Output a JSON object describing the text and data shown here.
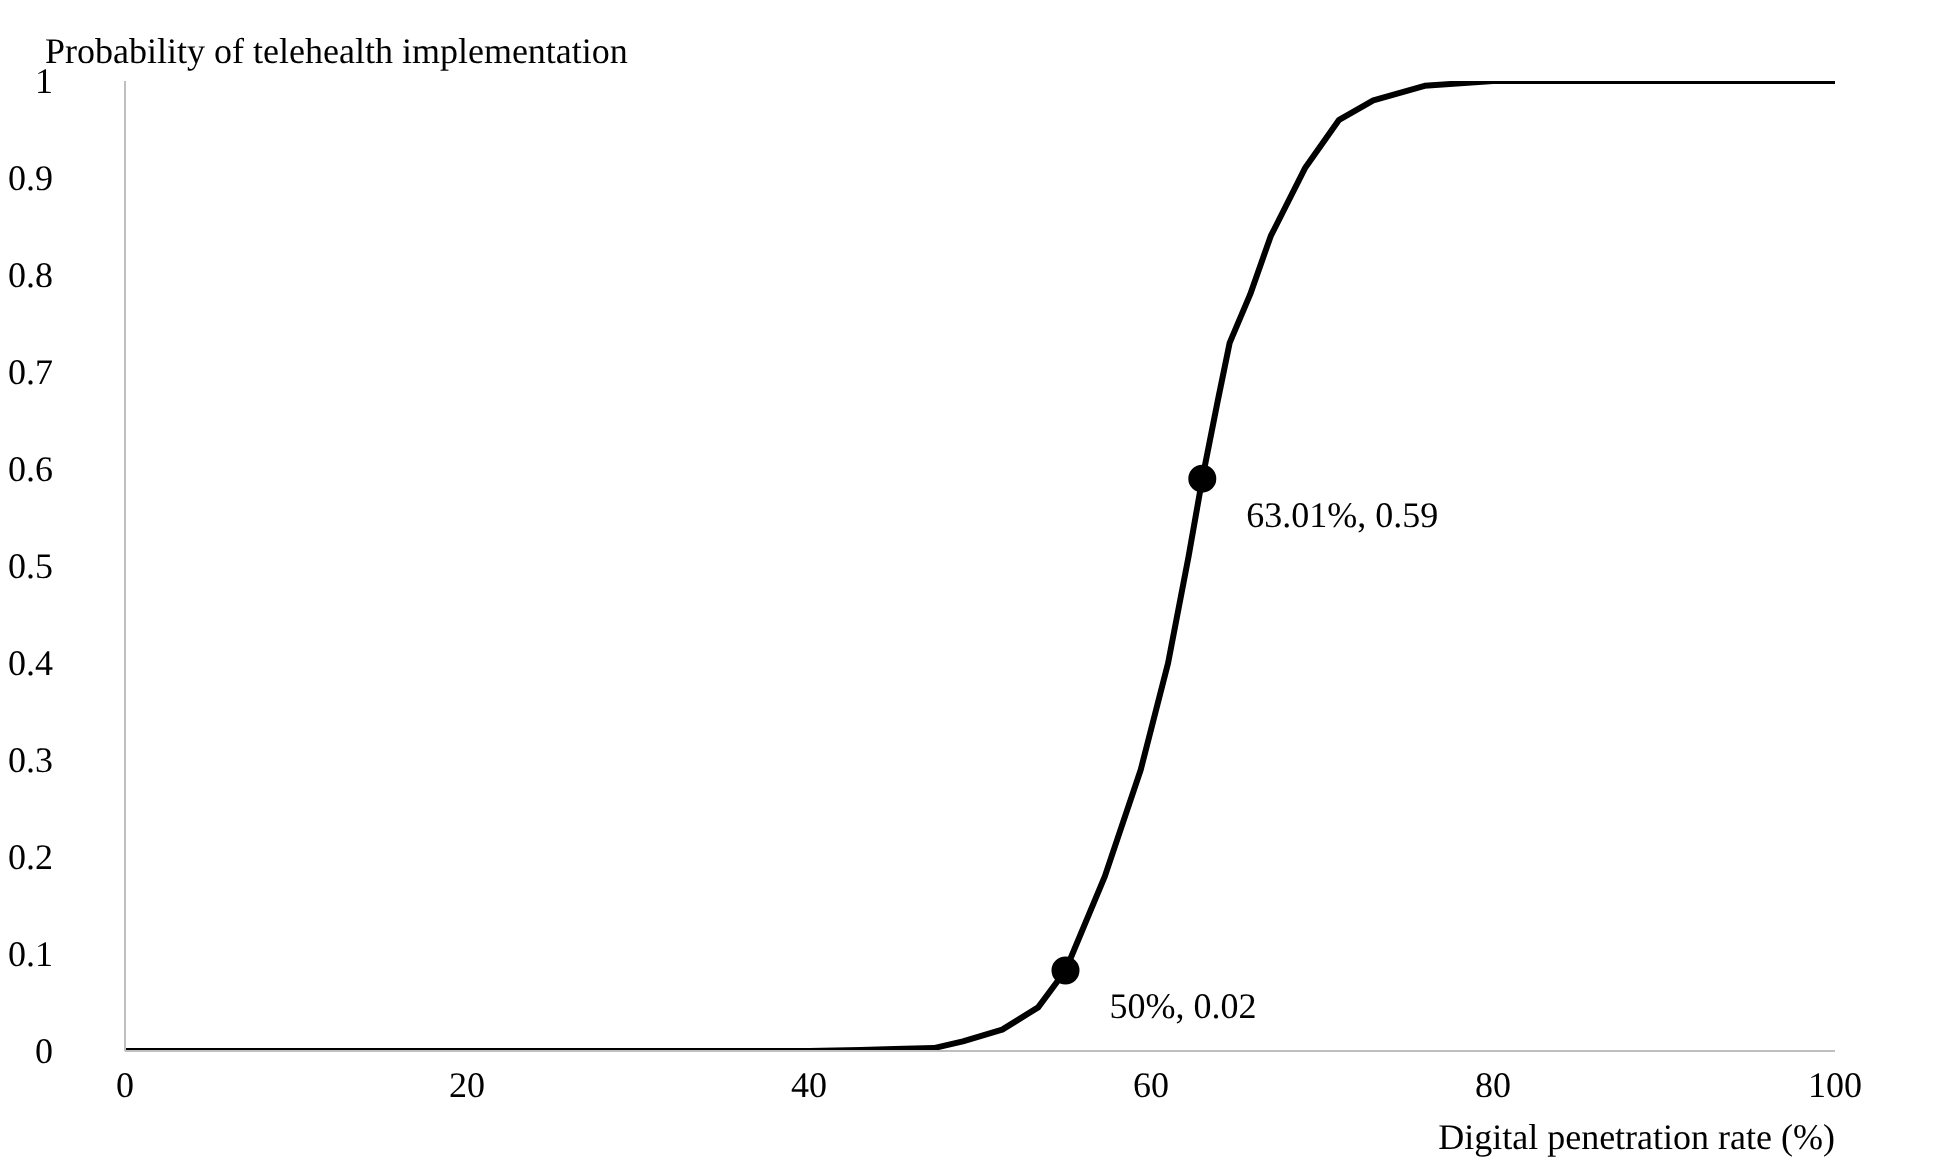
{
  "chart_data": {
    "type": "line",
    "ylabel": "Probability of telehealth implementation",
    "xlabel": "Digital penetration rate (%)",
    "xlim": [
      0,
      100
    ],
    "ylim": [
      0,
      1
    ],
    "xticks": [
      0,
      20,
      40,
      60,
      80,
      100
    ],
    "yticks": [
      0,
      0.1,
      0.2,
      0.3,
      0.4,
      0.5,
      0.6,
      0.7,
      0.8,
      0.9,
      1
    ],
    "grid": false,
    "series": [
      {
        "color": "#000000",
        "marker": "none",
        "line_style": "solid",
        "x": [
          0,
          10,
          20,
          30,
          40,
          43,
          45,
          47.3,
          49,
          51.3,
          53.4,
          55,
          57.3,
          59.4,
          61,
          62.2,
          63,
          63.9,
          64.6,
          65.8,
          67,
          69,
          71,
          73,
          76,
          80,
          90,
          100
        ],
        "values": [
          0,
          0,
          0,
          0,
          0,
          0.001,
          0.002,
          0.003,
          0.01,
          0.022,
          0.045,
          0.083,
          0.18,
          0.29,
          0.4,
          0.51,
          0.59,
          0.67,
          0.73,
          0.78,
          0.84,
          0.91,
          0.96,
          0.98,
          0.995,
          1,
          1,
          1
        ]
      },
      {
        "type": "scatter",
        "color": "#000000",
        "marker": "circle",
        "x": [
          55,
          63
        ],
        "values": [
          0.083,
          0.59
        ]
      }
    ],
    "annotations": [
      {
        "text": "50%, 0.02",
        "x": 55,
        "y": 0.083
      },
      {
        "text": "63.01%, 0.59",
        "x": 63,
        "y": 0.59
      }
    ]
  }
}
